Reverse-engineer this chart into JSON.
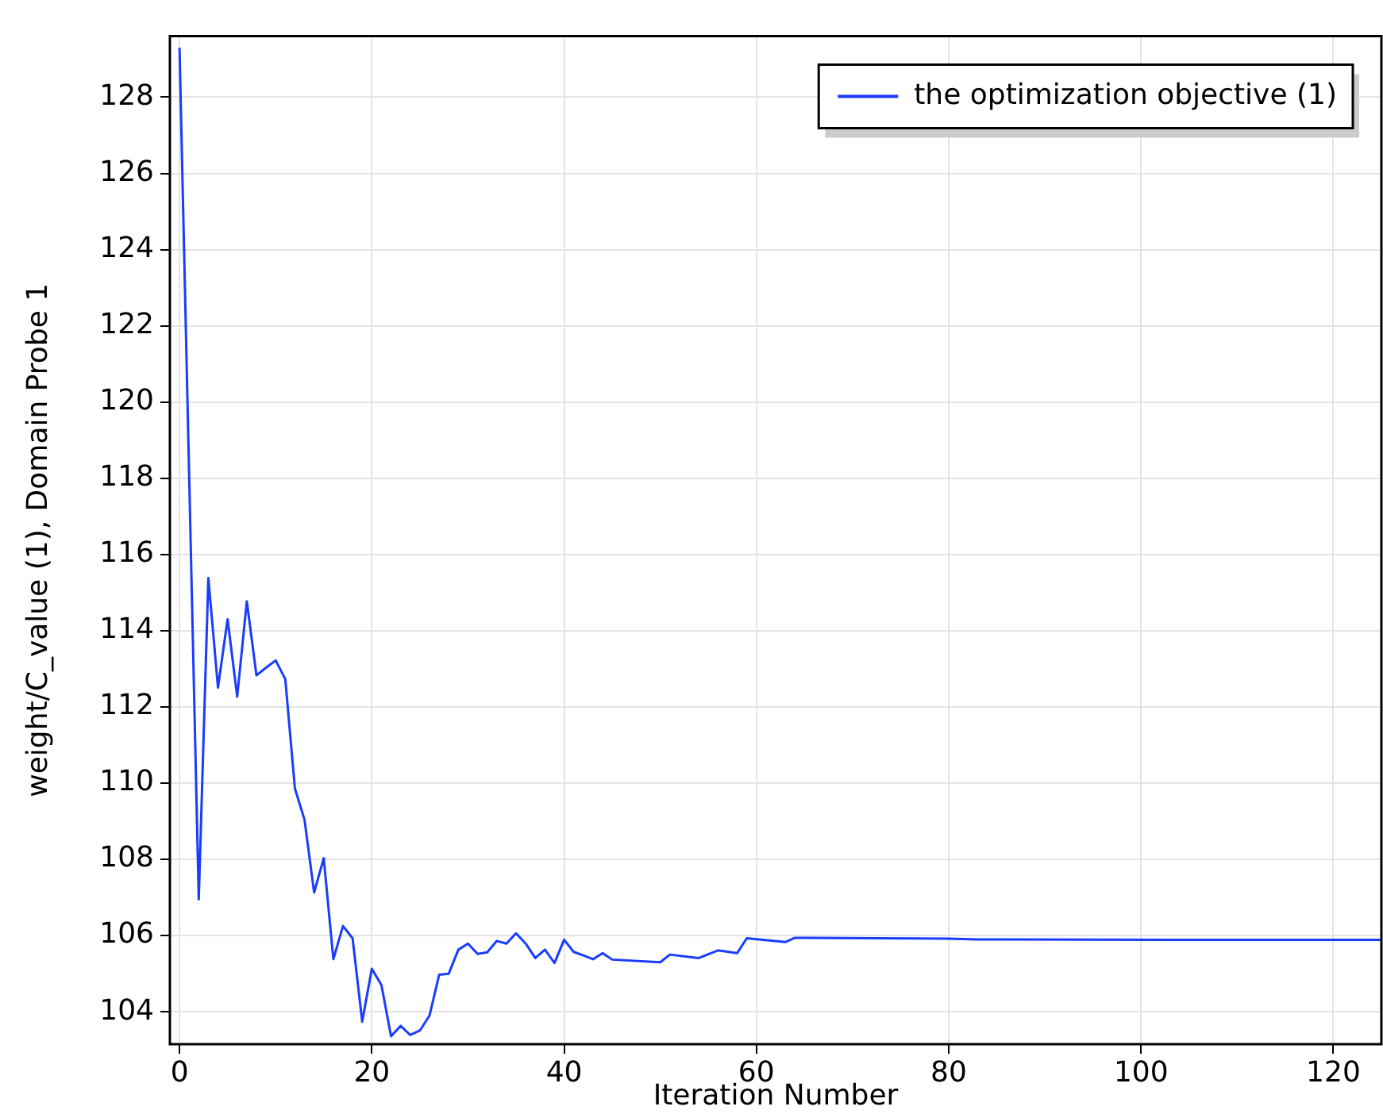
{
  "chart_data": {
    "type": "line",
    "xlabel": "Iteration Number",
    "ylabel": "weight/C_value (1), Domain Probe 1",
    "x": [
      0,
      1,
      2,
      3,
      4,
      5,
      6,
      7,
      8,
      9,
      10,
      11,
      12,
      13,
      14,
      15,
      16,
      17,
      18,
      19,
      20,
      21,
      22,
      23,
      24,
      25,
      26,
      27,
      28,
      29,
      30,
      31,
      32,
      33,
      34,
      35,
      36,
      37,
      38,
      39,
      40,
      41,
      42,
      43,
      44,
      45,
      50,
      51,
      54,
      56,
      58,
      59,
      63,
      64,
      80,
      83,
      103,
      125
    ],
    "series": [
      {
        "name": "the optimization objective (1)",
        "color": "#1a3cff",
        "values": [
          129.3,
          118.1,
          106.95,
          115.38,
          112.51,
          114.3,
          112.27,
          114.77,
          112.83,
          113.03,
          113.22,
          112.73,
          109.86,
          109.04,
          107.13,
          108.03,
          105.38,
          106.25,
          105.93,
          103.74,
          105.13,
          104.7,
          103.36,
          103.63,
          103.39,
          103.51,
          103.9,
          104.97,
          105.0,
          105.63,
          105.79,
          105.52,
          105.56,
          105.86,
          105.79,
          106.06,
          105.79,
          105.41,
          105.63,
          105.28,
          105.89,
          105.57,
          105.48,
          105.38,
          105.54,
          105.37,
          105.3,
          105.5,
          105.41,
          105.61,
          105.54,
          105.93,
          105.83,
          105.94,
          105.92,
          105.9,
          105.89,
          105.89
        ]
      }
    ],
    "xlim": [
      -1,
      125
    ],
    "xticks": [
      0,
      20,
      40,
      60,
      80,
      100,
      120
    ],
    "ylim": [
      103.15,
      129.6
    ],
    "yticks": [
      104,
      106,
      108,
      110,
      112,
      114,
      116,
      118,
      120,
      122,
      124,
      126,
      128
    ],
    "grid": true,
    "legend": "top right",
    "marker": "none",
    "line_style": "solid"
  }
}
